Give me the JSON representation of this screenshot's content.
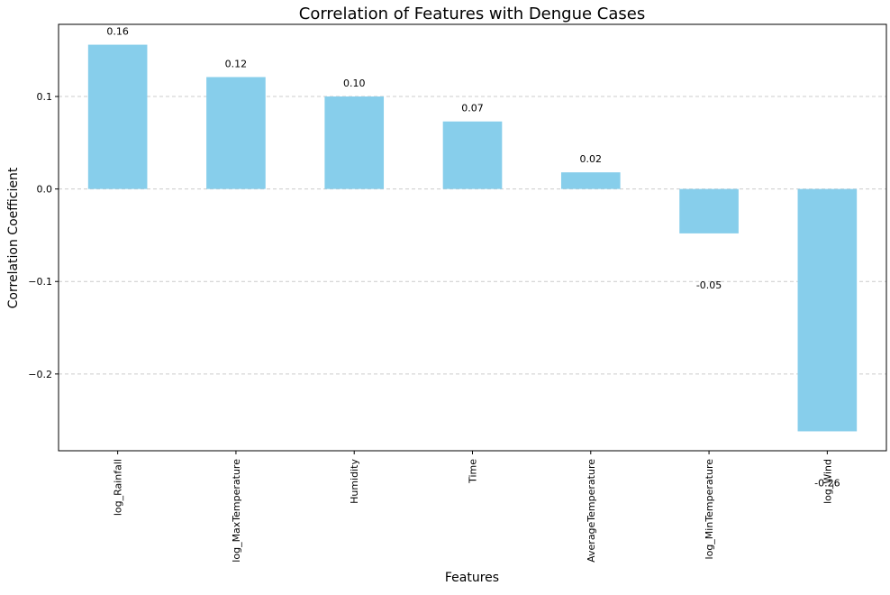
{
  "chart_data": {
    "type": "bar",
    "title": "Correlation of Features with Dengue Cases",
    "xlabel": "Features",
    "ylabel": "Correlation Coefficient",
    "categories": [
      "log_Rainfall",
      "log_MaxTemperature",
      "Humidity",
      "Time",
      "AverageTemperature",
      "log_MinTemperature",
      "log_Wind"
    ],
    "values": [
      0.156,
      0.121,
      0.1,
      0.073,
      0.018,
      -0.048,
      -0.262
    ],
    "value_labels": [
      "0.16",
      "0.12",
      "0.10",
      "0.07",
      "0.02",
      "-0.05",
      "-0.26"
    ],
    "ylim": [
      -0.283,
      0.178
    ],
    "yticks": [
      -0.2,
      -0.1,
      0.0,
      0.1
    ],
    "ytick_labels": [
      "−0.2",
      "−0.1",
      "0.0",
      "0.1"
    ],
    "grid": "y-dashed",
    "bar_color": "#87ceeb"
  }
}
